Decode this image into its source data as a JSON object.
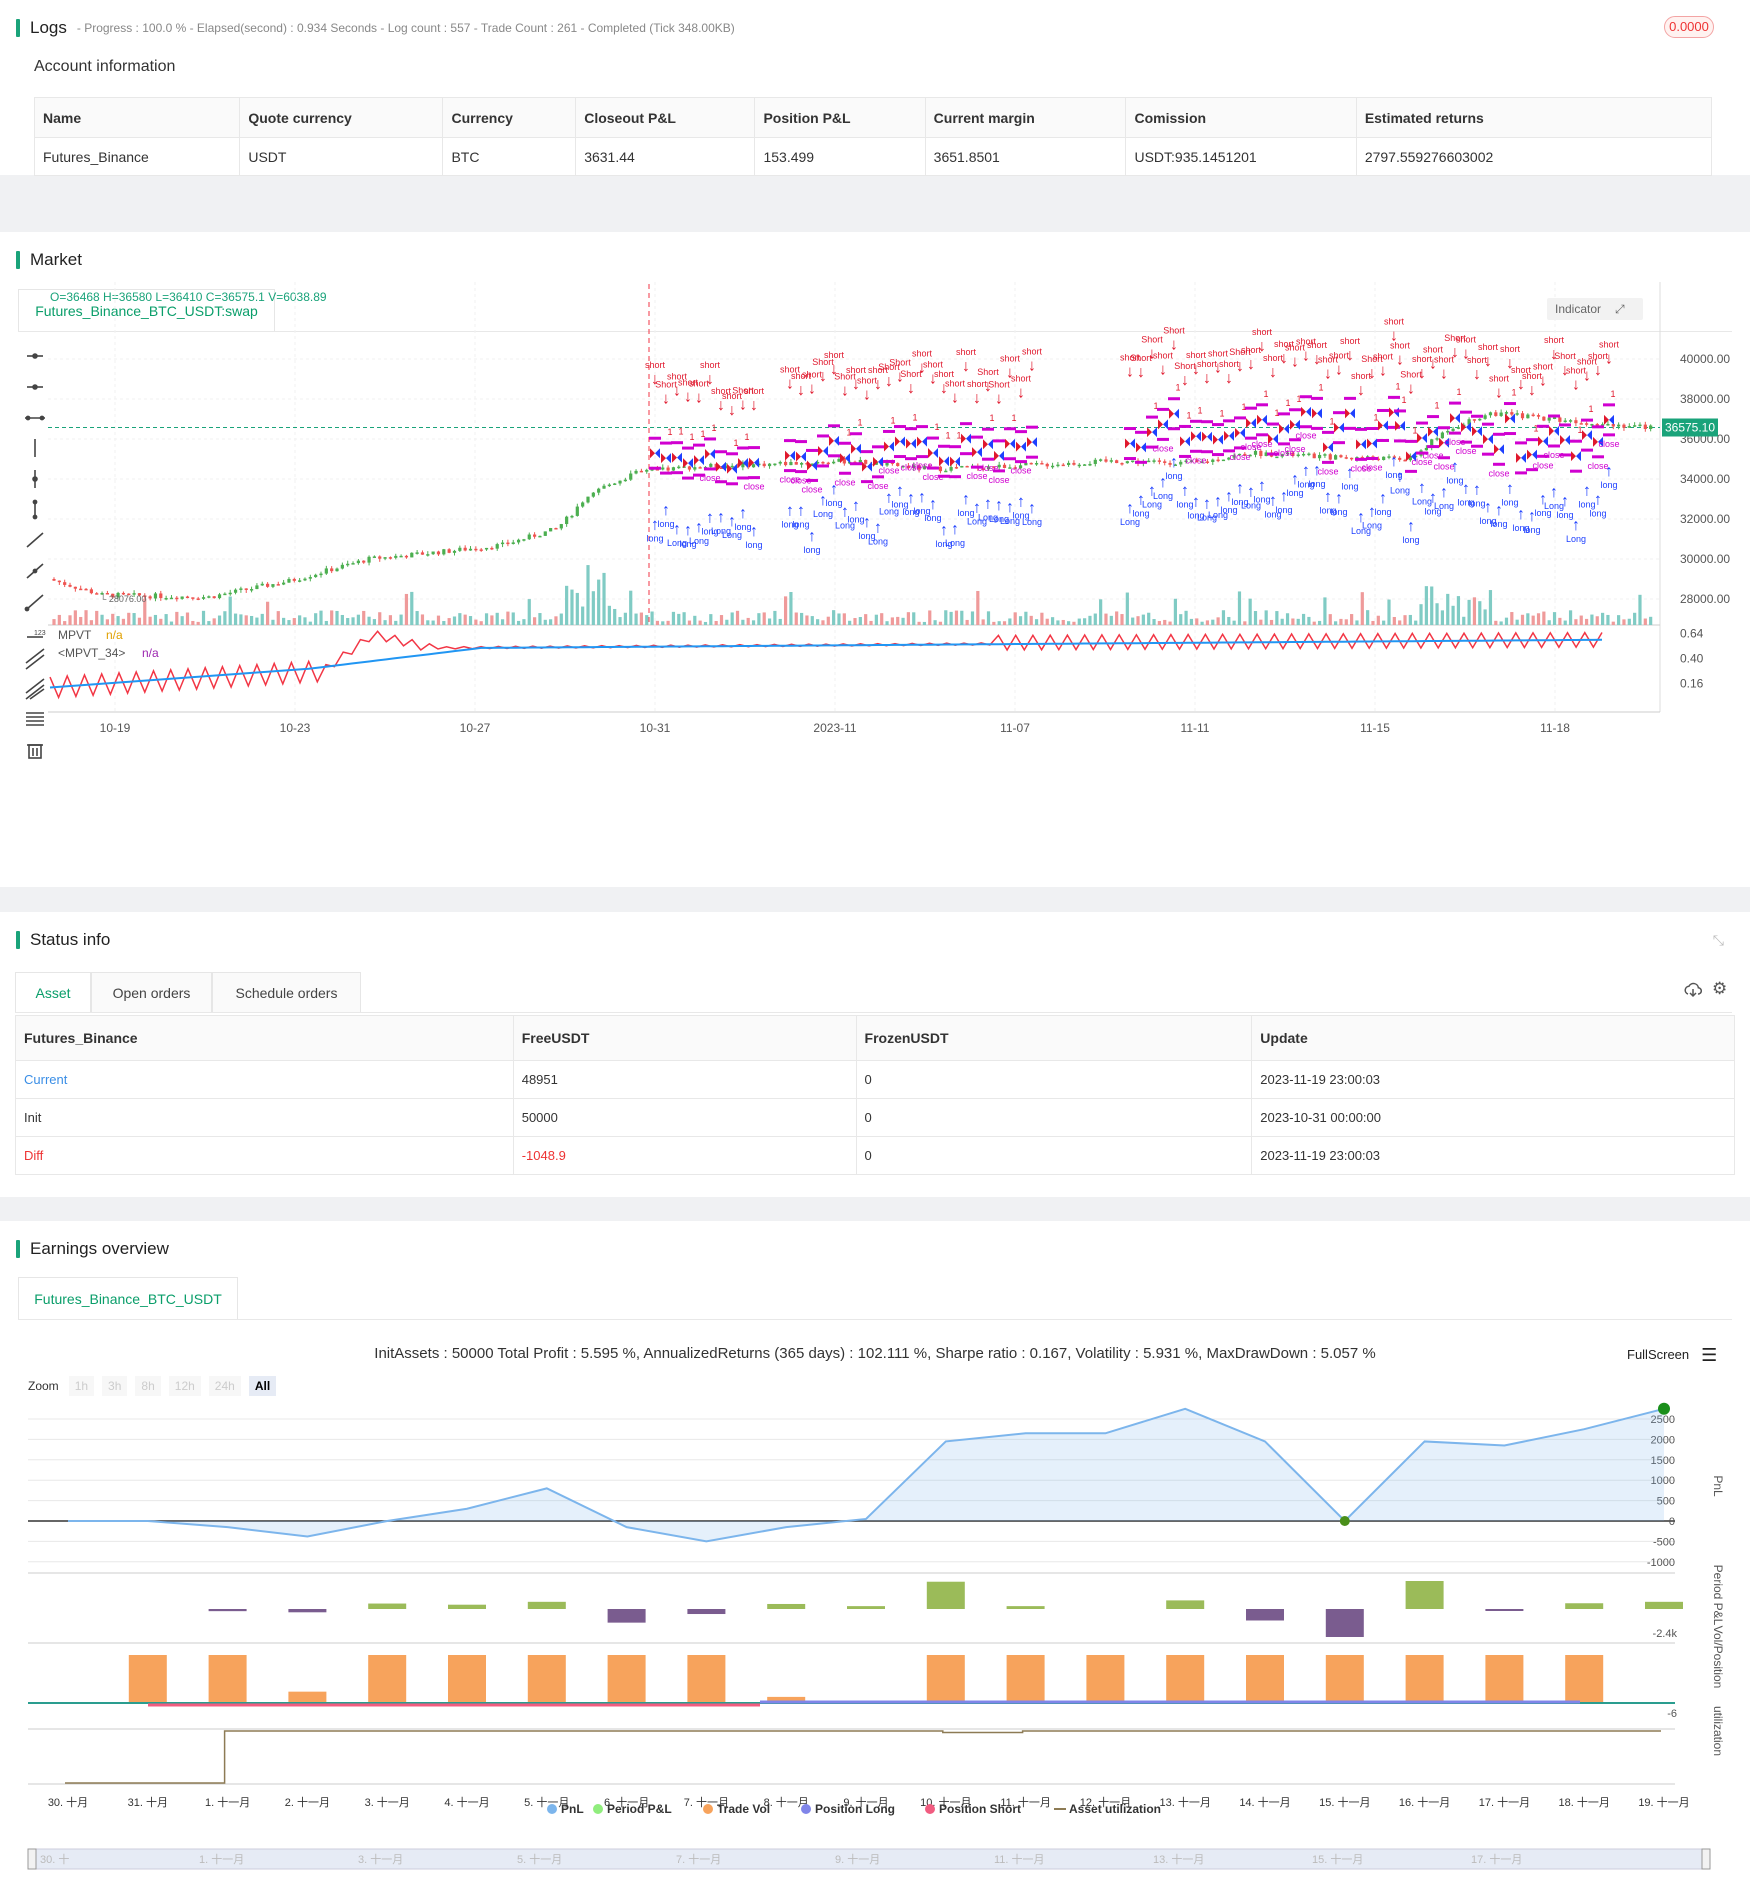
{
  "logs": {
    "title": "Logs",
    "progress_line": "- Progress : 100.0 % - Elapsed(second) : 0.934  Seconds - Log count : 557 - Trade Count : 261 - Completed (Tick 348.00KB)",
    "badge": "0.0000",
    "account_title": "Account information",
    "columns": [
      "Name",
      "Quote currency",
      "Currency",
      "Closeout P&L",
      "Position P&L",
      "Current margin",
      "Comission",
      "Estimated returns"
    ],
    "row": [
      "Futures_Binance",
      "USDT",
      "BTC",
      "3631.44",
      "153.499",
      "3651.8501",
      "USDT:935.1451201",
      "2797.559276603002"
    ]
  },
  "market": {
    "title": "Market",
    "tab": "Futures_Binance_BTC_USDT:swap",
    "ohlc": "O=36468 H=36580 L=36410 C=36575.1 V=6038.89",
    "indicator_btn": "Indicator",
    "price_label": "36575.10",
    "y_ticks": [
      "40000.00",
      "38000.00",
      "36000.00",
      "34000.00",
      "32000.00",
      "30000.00",
      "28000.00"
    ],
    "low_label": "28076.00",
    "ind_legend": [
      {
        "name": "MPVT",
        "val": "n/a"
      },
      {
        "name": "<MPVT_34>",
        "val": "n/a"
      }
    ],
    "ind_ticks": [
      "0.64",
      "0.40",
      "0.16"
    ],
    "x_ticks": [
      "10-19",
      "10-23",
      "10-27",
      "10-31",
      "2023-11",
      "11-07",
      "11-11",
      "11-15",
      "11-18"
    ],
    "colors": {
      "up": "#4caf50",
      "down": "#ef5350",
      "long": "#1e40ff",
      "short": "#e0182d",
      "close": "#d000d0",
      "mpvt": "#f23645",
      "mpvt34": "#2196f3"
    },
    "marker_texts": {
      "long": "long",
      "short": "short",
      "close": "close",
      "one": "1",
      "Long": "Long",
      "Short": "Short"
    }
  },
  "status": {
    "title": "Status info",
    "tabs": [
      "Asset",
      "Open orders",
      "Schedule orders"
    ],
    "columns": [
      "Futures_Binance",
      "FreeUSDT",
      "FrozenUSDT",
      "Update"
    ],
    "rows": [
      {
        "label": "Current",
        "free": "48951",
        "frozen": "0",
        "update": "2023-11-19 23:00:03"
      },
      {
        "label": "Init",
        "free": "50000",
        "frozen": "0",
        "update": "2023-10-31 00:00:00"
      },
      {
        "label": "Diff",
        "free": "-1048.9",
        "frozen": "0",
        "update": "2023-11-19 23:00:03"
      }
    ]
  },
  "earnings": {
    "title": "Earnings overview",
    "tab": "Futures_Binance_BTC_USDT",
    "summary": "InitAssets : 50000 Total Profit : 5.595 %, AnnualizedReturns (365 days) : 102.111 %, Sharpe ratio : 0.167, Volatility : 5.931 %, MaxDrawDown : 5.057 %",
    "fullscreen": "FullScreen",
    "zoom_label": "Zoom",
    "zoom_opts": [
      "1h",
      "3h",
      "8h",
      "12h",
      "24h",
      "All"
    ],
    "pnl_ticks": [
      "2500",
      "2000",
      "1500",
      "1000",
      "500",
      "0",
      "-500",
      "-1000"
    ],
    "axis_titles": [
      "PnL",
      "Period P&L",
      "Vol/Position",
      "utilization"
    ],
    "period_low": "-2.4k",
    "vol_low": "-6",
    "x_ticks": [
      "30. 十月",
      "31. 十月",
      "1. 十一月",
      "2. 十一月",
      "3. 十一月",
      "4. 十一月",
      "5. 十一月",
      "6. 十一月",
      "7. 十一月",
      "8. 十一月",
      "9. 十一月",
      "10. 十一月",
      "11. 十一月",
      "12. 十一月",
      "13. 十一月",
      "14. 十一月",
      "15. 十一月",
      "16. 十一月",
      "17. 十一月",
      "18. 十一月",
      "19. 十一月"
    ],
    "legend": [
      {
        "name": "PnL",
        "color": "#7cb5ec"
      },
      {
        "name": "Period P&L",
        "color": "#90ed7d"
      },
      {
        "name": "Trade Vol",
        "color": "#f7a35c"
      },
      {
        "name": "Position Long",
        "color": "#8085e9"
      },
      {
        "name": "Position Short",
        "color": "#f15c80"
      },
      {
        "name": "Asset utilization",
        "color": "#8d7b55"
      }
    ],
    "nav_ticks": [
      "30. 十",
      "1. 十一月",
      "3. 十一月",
      "5. 十一月",
      "7. 十一月",
      "9. 十一月",
      "11. 十一月",
      "13. 十一月",
      "15. 十一月",
      "17. 十一月"
    ],
    "chart_data": {
      "type": "line",
      "x": [
        "30. 十月",
        "31. 十月",
        "1. 十一月",
        "2. 十一月",
        "3. 十一月",
        "4. 十一月",
        "5. 十一月",
        "6. 十一月",
        "7. 十一月",
        "8. 十一月",
        "9. 十一月",
        "10. 十一月",
        "11. 十一月",
        "12. 十一月",
        "13. 十一月",
        "14. 十一月",
        "15. 十一月",
        "16. 十一月",
        "17. 十一月",
        "18. 十一月",
        "19. 十一月"
      ],
      "pnl": [
        0,
        0,
        -150,
        -380,
        0,
        300,
        800,
        -150,
        -500,
        -150,
        50,
        1950,
        2150,
        2150,
        2750,
        1950,
        0,
        1950,
        1850,
        2250,
        2750
      ],
      "period_pnl": [
        0,
        0,
        -150,
        -230,
        380,
        300,
        500,
        -950,
        -350,
        350,
        200,
        1900,
        200,
        0,
        600,
        -800,
        -1950,
        1950,
        -100,
        400,
        500
      ],
      "trade_vol": [
        0,
        5.5,
        5.5,
        1.3,
        5.5,
        5.5,
        5.5,
        5.5,
        5.5,
        0.7,
        0,
        5.5,
        5.5,
        5.5,
        5.5,
        5.5,
        5.5,
        5.5,
        5.5,
        5.5,
        0
      ],
      "utilization": [
        0,
        0,
        1,
        1,
        1,
        1,
        1,
        1,
        1,
        1,
        1,
        0.97,
        1,
        1,
        1,
        1,
        1,
        1,
        1,
        1,
        1
      ],
      "ylim": [
        -1000,
        2800
      ]
    }
  }
}
